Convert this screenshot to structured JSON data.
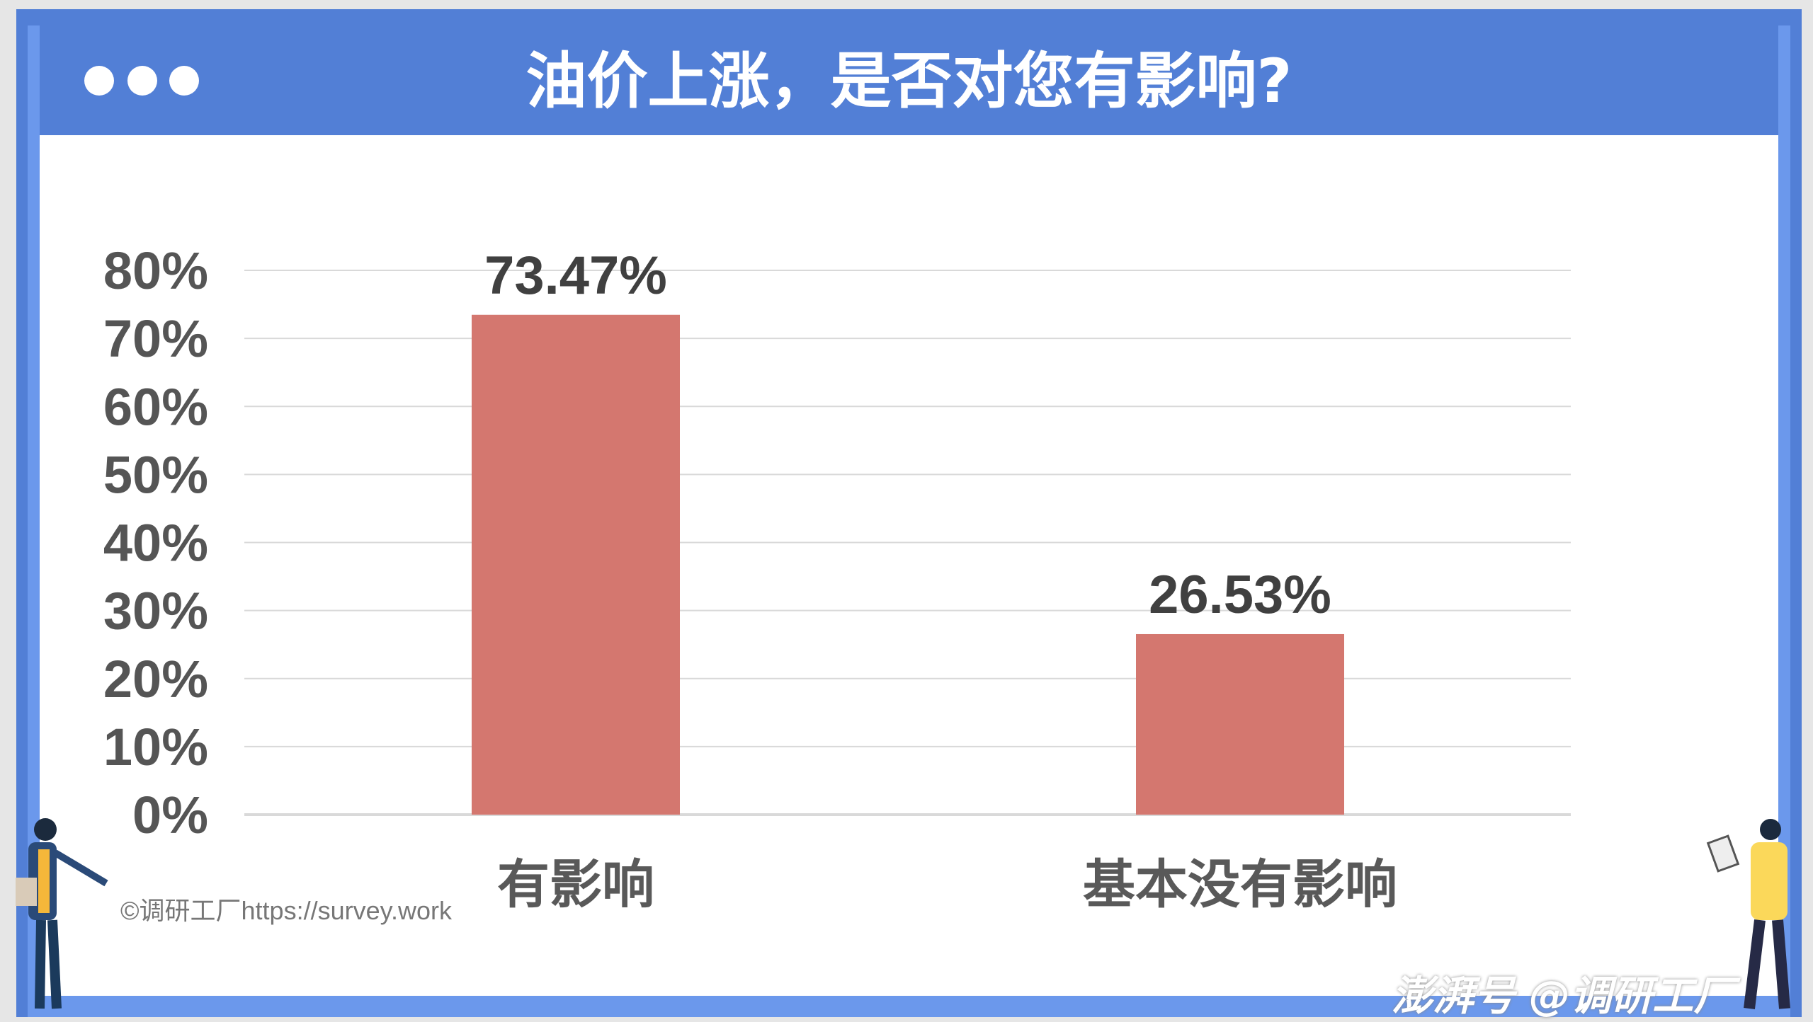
{
  "title": "油价上涨，是否对您有影响?",
  "watermark": "©调研工厂https://survey.work",
  "platform_watermark": "澎湃号 @调研工厂",
  "colors": {
    "frame": "#527fd6",
    "frame_inner": "#6b98ec",
    "bar": "#d4776f"
  },
  "chart_data": {
    "type": "bar",
    "title": "油价上涨，是否对您有影响?",
    "categories": [
      "有影响",
      "基本没有影响"
    ],
    "values": [
      73.47,
      26.53
    ],
    "data_labels": [
      "73.47%",
      "26.53%"
    ],
    "ylim": [
      0,
      80
    ],
    "yticks": [
      "0%",
      "10%",
      "20%",
      "30%",
      "40%",
      "50%",
      "60%",
      "70%",
      "80%"
    ],
    "grid": true
  }
}
